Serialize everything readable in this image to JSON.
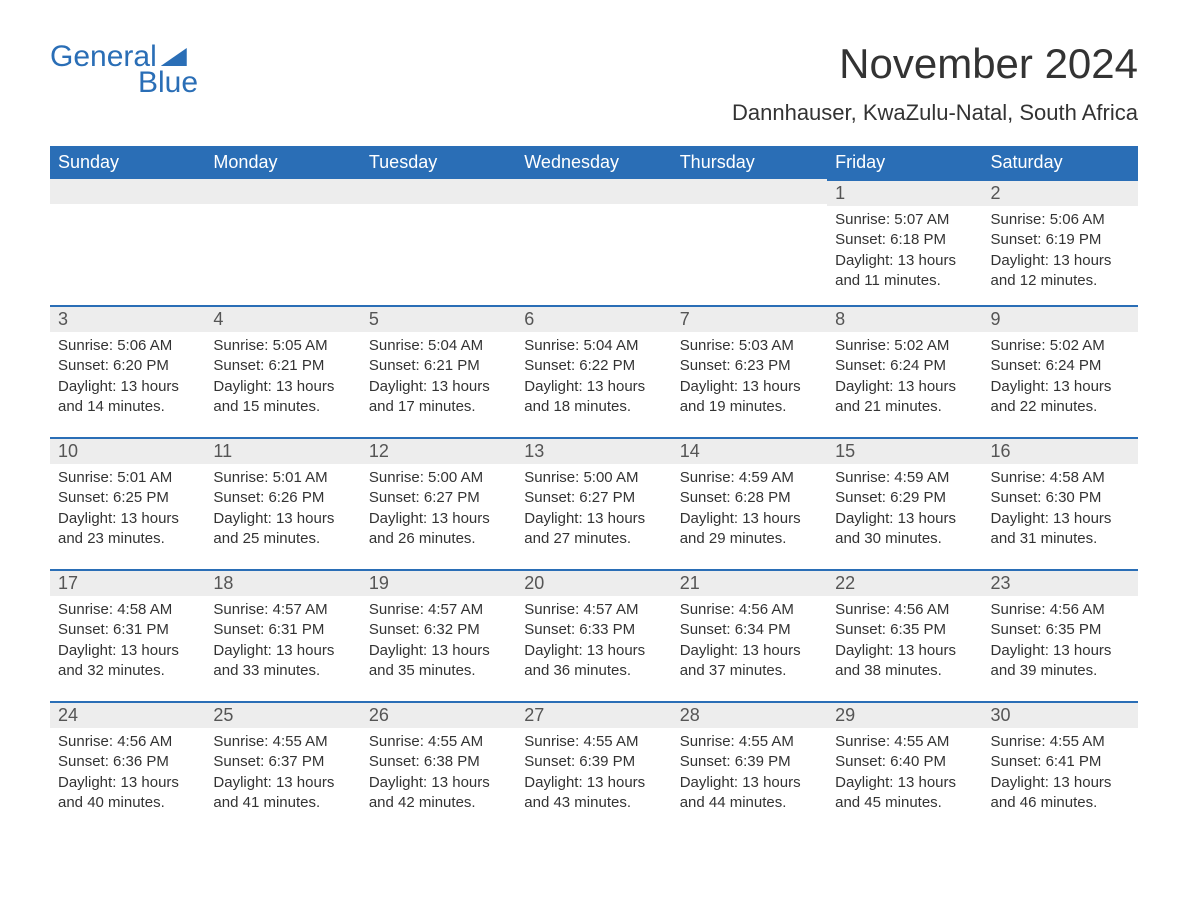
{
  "logo": {
    "text1": "General",
    "text2": "Blue"
  },
  "title": "November 2024",
  "location": "Dannhauser, KwaZulu-Natal, South Africa",
  "header_bg": "#2a6eb6",
  "header_fg": "#ffffff",
  "daynum_bg": "#ededed",
  "row_border": "#2a6eb6",
  "weekdays": [
    "Sunday",
    "Monday",
    "Tuesday",
    "Wednesday",
    "Thursday",
    "Friday",
    "Saturday"
  ],
  "weeks": [
    [
      null,
      null,
      null,
      null,
      null,
      {
        "n": "1",
        "sunrise": "5:07 AM",
        "sunset": "6:18 PM",
        "daylight": "13 hours and 11 minutes."
      },
      {
        "n": "2",
        "sunrise": "5:06 AM",
        "sunset": "6:19 PM",
        "daylight": "13 hours and 12 minutes."
      }
    ],
    [
      {
        "n": "3",
        "sunrise": "5:06 AM",
        "sunset": "6:20 PM",
        "daylight": "13 hours and 14 minutes."
      },
      {
        "n": "4",
        "sunrise": "5:05 AM",
        "sunset": "6:21 PM",
        "daylight": "13 hours and 15 minutes."
      },
      {
        "n": "5",
        "sunrise": "5:04 AM",
        "sunset": "6:21 PM",
        "daylight": "13 hours and 17 minutes."
      },
      {
        "n": "6",
        "sunrise": "5:04 AM",
        "sunset": "6:22 PM",
        "daylight": "13 hours and 18 minutes."
      },
      {
        "n": "7",
        "sunrise": "5:03 AM",
        "sunset": "6:23 PM",
        "daylight": "13 hours and 19 minutes."
      },
      {
        "n": "8",
        "sunrise": "5:02 AM",
        "sunset": "6:24 PM",
        "daylight": "13 hours and 21 minutes."
      },
      {
        "n": "9",
        "sunrise": "5:02 AM",
        "sunset": "6:24 PM",
        "daylight": "13 hours and 22 minutes."
      }
    ],
    [
      {
        "n": "10",
        "sunrise": "5:01 AM",
        "sunset": "6:25 PM",
        "daylight": "13 hours and 23 minutes."
      },
      {
        "n": "11",
        "sunrise": "5:01 AM",
        "sunset": "6:26 PM",
        "daylight": "13 hours and 25 minutes."
      },
      {
        "n": "12",
        "sunrise": "5:00 AM",
        "sunset": "6:27 PM",
        "daylight": "13 hours and 26 minutes."
      },
      {
        "n": "13",
        "sunrise": "5:00 AM",
        "sunset": "6:27 PM",
        "daylight": "13 hours and 27 minutes."
      },
      {
        "n": "14",
        "sunrise": "4:59 AM",
        "sunset": "6:28 PM",
        "daylight": "13 hours and 29 minutes."
      },
      {
        "n": "15",
        "sunrise": "4:59 AM",
        "sunset": "6:29 PM",
        "daylight": "13 hours and 30 minutes."
      },
      {
        "n": "16",
        "sunrise": "4:58 AM",
        "sunset": "6:30 PM",
        "daylight": "13 hours and 31 minutes."
      }
    ],
    [
      {
        "n": "17",
        "sunrise": "4:58 AM",
        "sunset": "6:31 PM",
        "daylight": "13 hours and 32 minutes."
      },
      {
        "n": "18",
        "sunrise": "4:57 AM",
        "sunset": "6:31 PM",
        "daylight": "13 hours and 33 minutes."
      },
      {
        "n": "19",
        "sunrise": "4:57 AM",
        "sunset": "6:32 PM",
        "daylight": "13 hours and 35 minutes."
      },
      {
        "n": "20",
        "sunrise": "4:57 AM",
        "sunset": "6:33 PM",
        "daylight": "13 hours and 36 minutes."
      },
      {
        "n": "21",
        "sunrise": "4:56 AM",
        "sunset": "6:34 PM",
        "daylight": "13 hours and 37 minutes."
      },
      {
        "n": "22",
        "sunrise": "4:56 AM",
        "sunset": "6:35 PM",
        "daylight": "13 hours and 38 minutes."
      },
      {
        "n": "23",
        "sunrise": "4:56 AM",
        "sunset": "6:35 PM",
        "daylight": "13 hours and 39 minutes."
      }
    ],
    [
      {
        "n": "24",
        "sunrise": "4:56 AM",
        "sunset": "6:36 PM",
        "daylight": "13 hours and 40 minutes."
      },
      {
        "n": "25",
        "sunrise": "4:55 AM",
        "sunset": "6:37 PM",
        "daylight": "13 hours and 41 minutes."
      },
      {
        "n": "26",
        "sunrise": "4:55 AM",
        "sunset": "6:38 PM",
        "daylight": "13 hours and 42 minutes."
      },
      {
        "n": "27",
        "sunrise": "4:55 AM",
        "sunset": "6:39 PM",
        "daylight": "13 hours and 43 minutes."
      },
      {
        "n": "28",
        "sunrise": "4:55 AM",
        "sunset": "6:39 PM",
        "daylight": "13 hours and 44 minutes."
      },
      {
        "n": "29",
        "sunrise": "4:55 AM",
        "sunset": "6:40 PM",
        "daylight": "13 hours and 45 minutes."
      },
      {
        "n": "30",
        "sunrise": "4:55 AM",
        "sunset": "6:41 PM",
        "daylight": "13 hours and 46 minutes."
      }
    ]
  ],
  "labels": {
    "sunrise": "Sunrise:",
    "sunset": "Sunset:",
    "daylight": "Daylight:"
  }
}
